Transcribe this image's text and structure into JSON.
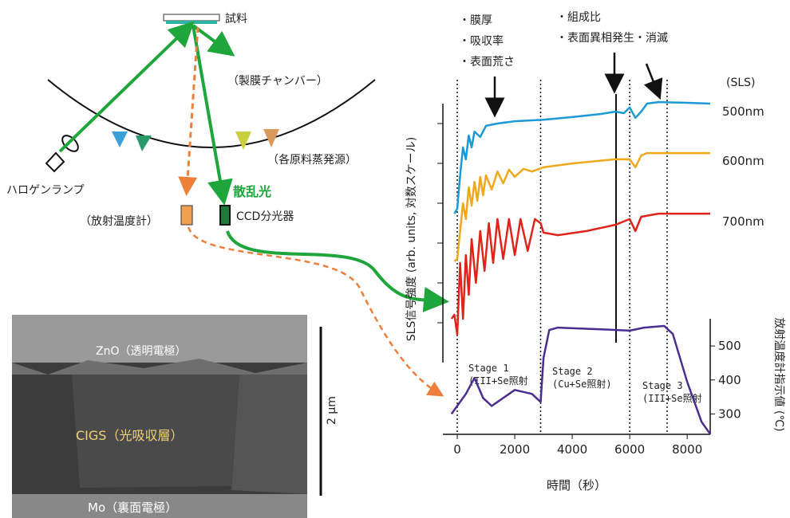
{
  "diagram": {
    "sample": "試料",
    "chamber": "（製膜チャンバー）",
    "sources": "（各原料蒸発源）",
    "lamp": "ハロゲンランプ",
    "scattered_light": "散乱光",
    "ccd": "CCD分光器",
    "pyrometer": "（放射温度計）"
  },
  "sem_image": {
    "top_layer": "ZnO（透明電極）",
    "absorber": "CIGS（光吸収層）",
    "back_contact": "Mo（裏面電極）",
    "scale_bar": "2 μm"
  },
  "plot": {
    "annotation_1": [
      "・膜厚",
      "・吸収率",
      "・表面荒さ"
    ],
    "annotation_2": [
      "・組成比",
      "・表面異相発生・消滅"
    ],
    "legend_title": "(SLS)",
    "xlabel": "時間（秒）",
    "ylabel": "SLS信号強度 (arb. units, 対数スケール)",
    "y2label": "放射温度計指示値 (℃)",
    "xlim": [
      -500,
      8800
    ],
    "xticks": [
      0,
      2000,
      4000,
      6000,
      8000
    ],
    "ylim": [
      0,
      105
    ],
    "y2lim": [
      240,
      580
    ],
    "y2ticks": [
      300,
      400,
      500
    ],
    "stage_boundaries": [
      0,
      2900,
      6000,
      7300
    ],
    "stage_labels": [
      [
        "Stage 1",
        "(III+Se照射"
      ],
      [
        "Stage 2",
        "(Cu+Se照射)"
      ],
      [
        "Stage 3",
        "(III+Se照射"
      ]
    ],
    "series": [
      {
        "name": "500nm",
        "color": "#1a9ad6",
        "x": [
          -100,
          0,
          100,
          200,
          300,
          400,
          500,
          600,
          800,
          1000,
          1400,
          2000,
          3000,
          4000,
          5000,
          5500,
          5800,
          6000,
          6200,
          6400,
          6600,
          7000,
          8000,
          8800
        ],
        "values": [
          57.5,
          59.4,
          72.3,
          83.1,
          78.5,
          87.7,
          83.1,
          89.2,
          87.1,
          91.4,
          92.3,
          93.2,
          93.8,
          94.8,
          96,
          96.9,
          96.3,
          98.5,
          94.5,
          96.9,
          100,
          100.6,
          100.3,
          100
        ]
      },
      {
        "name": "600nm",
        "color": "#f0a81c",
        "x": [
          -100,
          0,
          100,
          200,
          300,
          400,
          500,
          600,
          700,
          800,
          900,
          1000,
          1200,
          1400,
          1600,
          1800,
          2000,
          2300,
          2600,
          3000,
          4000,
          5500,
          6000,
          6200,
          6400,
          6600,
          8000,
          8800
        ],
        "values": [
          39.1,
          40,
          50.8,
          61.5,
          55.4,
          67.7,
          60.6,
          69.8,
          62.5,
          71.7,
          64.6,
          72.3,
          66.8,
          73.8,
          69.2,
          74.5,
          71.7,
          74.8,
          73.8,
          75.4,
          76.9,
          78.5,
          78.5,
          75.4,
          80,
          80.9,
          80.9,
          80.9
        ]
      },
      {
        "name": "700nm",
        "color": "#e2231a",
        "x": [
          -200,
          -100,
          0,
          100,
          200,
          300,
          400,
          500,
          650,
          800,
          950,
          1100,
          1250,
          1400,
          1600,
          1800,
          2000,
          2200,
          2450,
          2700,
          2900,
          3000,
          3500,
          4500,
          5500,
          6000,
          6200,
          6400,
          7000,
          8800
        ],
        "values": [
          16.9,
          18.5,
          10.8,
          38.5,
          16.9,
          41.5,
          26.2,
          47.7,
          30.8,
          50.8,
          35.4,
          53.8,
          38.5,
          55.4,
          40,
          55.4,
          41.5,
          55.4,
          43.1,
          55.4,
          53.8,
          50.2,
          49.2,
          50.8,
          53.2,
          55.4,
          50.8,
          56.3,
          57.5,
          57.5
        ]
      }
    ],
    "temperature": {
      "color": "#4b2c91",
      "x": [
        -200,
        0,
        300,
        600,
        900,
        1200,
        1600,
        2000,
        2600,
        2900,
        3000,
        3200,
        3500,
        5000,
        6000,
        6500,
        7200,
        7500,
        8000,
        8500,
        8800
      ],
      "values": [
        300,
        323.5,
        358.8,
        405.9,
        347,
        323.5,
        347,
        370.6,
        358.8,
        335.3,
        464.7,
        547,
        554,
        549,
        545,
        554,
        558.8,
        535,
        394,
        276.5,
        241
      ]
    }
  }
}
